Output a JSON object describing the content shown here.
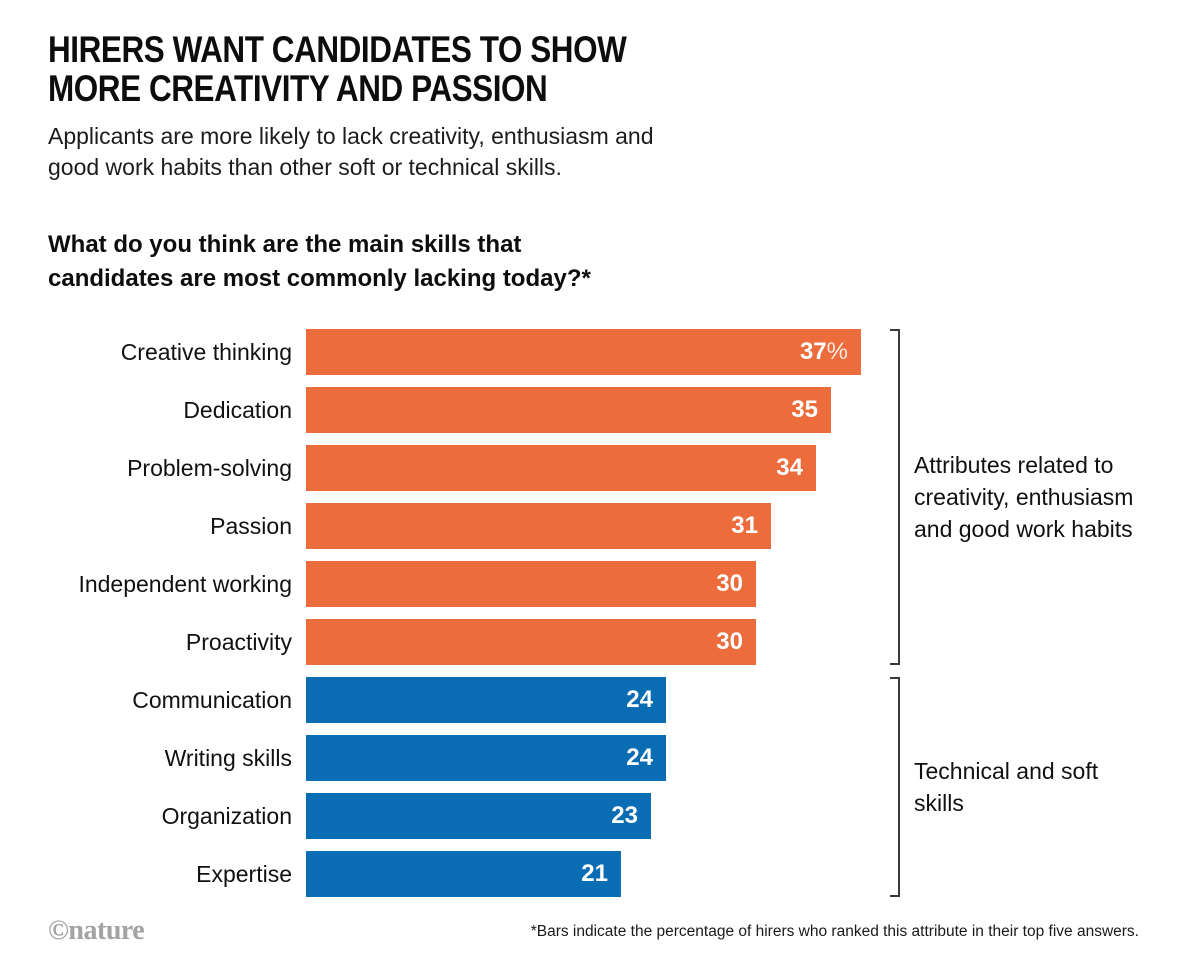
{
  "header": {
    "title_line1": "HIRERS WANT CANDIDATES TO SHOW",
    "title_line2": "MORE CREATIVITY AND PASSION",
    "subtitle": "Applicants are more likely to lack creativity, enthusiasm and good work habits than other soft or technical skills.",
    "question": "What do you think are the main skills that candidates are most commonly lacking today?*"
  },
  "chart_data": {
    "type": "bar",
    "orientation": "horizontal",
    "title": "What do you think are the main skills that candidates are most commonly lacking today?*",
    "categories": [
      "Creative thinking",
      "Dedication",
      "Problem-solving",
      "Passion",
      "Independent working",
      "Proactivity",
      "Communication",
      "Writing skills",
      "Organization",
      "Expertise"
    ],
    "values": [
      37,
      35,
      34,
      31,
      30,
      30,
      24,
      24,
      23,
      21
    ],
    "unit": "%",
    "first_bar_suffix": "%",
    "xlim": [
      0,
      40
    ],
    "grid": false,
    "legend_position": "right-brackets",
    "groups": [
      {
        "label": "Attributes related to creativity, enthusiasm and good work habits",
        "start_index": 0,
        "end_index": 5,
        "color": "#ED6C3C"
      },
      {
        "label": "Technical and soft skills",
        "start_index": 6,
        "end_index": 9,
        "color": "#0A6DB4"
      }
    ]
  },
  "colors": {
    "creativity_group": "#ED6C3C",
    "technical_group": "#0A6DB4",
    "bracket": "#3a3a3a",
    "credit_gray": "#a3a3a3"
  },
  "footer": {
    "footnote": "*Bars indicate the percentage of hirers who ranked this attribute in their top five answers.",
    "credit": "©nature"
  }
}
